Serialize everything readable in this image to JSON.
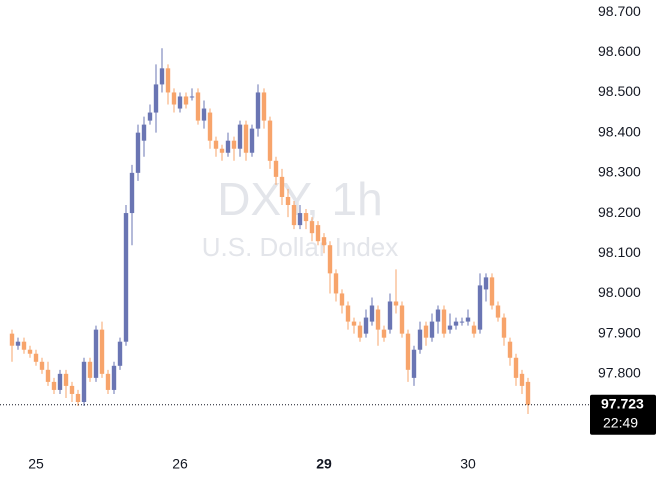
{
  "chart_data": {
    "type": "candlestick",
    "watermark_title": "DXY, 1h",
    "watermark_subtitle": "U.S. Dollar Index",
    "up_color": "#6a75b3",
    "down_color": "#f7a46b",
    "open": [
      97.9,
      97.87,
      97.88,
      97.86,
      97.85,
      97.83,
      97.81,
      97.78,
      97.76,
      97.8,
      97.77,
      97.75,
      97.73,
      97.83,
      97.79,
      97.91,
      97.8,
      97.76,
      97.82,
      97.88,
      98.2,
      98.3,
      98.38,
      98.43,
      98.45,
      98.52,
      98.56,
      98.5,
      98.46,
      98.49,
      98.49,
      98.5,
      98.43,
      98.45,
      98.38,
      98.36,
      98.35,
      98.38,
      98.36,
      98.42,
      98.35,
      98.41,
      98.5,
      98.43,
      98.33,
      98.29,
      98.24,
      98.22,
      98.17,
      98.2,
      98.18,
      98.17,
      98.14,
      98.12,
      98.05,
      98.0,
      97.97,
      97.93,
      97.92,
      97.9,
      97.93,
      97.96,
      97.91,
      97.91,
      97.98,
      97.97,
      97.9,
      97.79,
      97.86,
      97.92,
      97.89,
      97.93,
      97.96,
      97.91,
      97.92,
      97.93,
      97.93,
      97.92,
      97.91,
      98.01,
      98.04,
      97.97,
      97.94,
      97.88,
      97.84,
      97.8,
      97.78
    ],
    "high": [
      97.91,
      97.89,
      97.89,
      97.87,
      97.86,
      97.84,
      97.83,
      97.79,
      97.81,
      97.81,
      97.78,
      97.76,
      97.84,
      97.84,
      97.92,
      97.93,
      97.81,
      97.83,
      97.89,
      98.22,
      98.32,
      98.42,
      98.44,
      98.47,
      98.57,
      98.61,
      98.57,
      98.51,
      98.5,
      98.5,
      98.51,
      98.51,
      98.48,
      98.46,
      98.39,
      98.37,
      98.4,
      98.39,
      98.43,
      98.43,
      98.42,
      98.52,
      98.51,
      98.44,
      98.34,
      98.31,
      98.26,
      98.23,
      98.22,
      98.21,
      98.19,
      98.18,
      98.15,
      98.13,
      98.06,
      98.01,
      97.98,
      97.94,
      97.93,
      97.96,
      97.99,
      97.97,
      97.92,
      98.0,
      98.06,
      97.98,
      97.91,
      97.87,
      97.93,
      97.93,
      97.95,
      97.97,
      97.97,
      97.95,
      97.94,
      97.94,
      97.96,
      97.93,
      98.05,
      98.05,
      98.05,
      97.98,
      97.95,
      97.89,
      97.85,
      97.81,
      97.79
    ],
    "low": [
      97.83,
      97.86,
      97.85,
      97.84,
      97.82,
      97.8,
      97.77,
      97.75,
      97.75,
      97.74,
      97.73,
      97.72,
      97.72,
      97.78,
      97.78,
      97.79,
      97.75,
      97.75,
      97.81,
      97.87,
      98.12,
      98.28,
      98.34,
      98.42,
      98.4,
      98.5,
      98.47,
      98.45,
      98.45,
      98.46,
      98.48,
      98.42,
      98.41,
      98.36,
      98.34,
      98.33,
      98.34,
      98.33,
      98.34,
      98.33,
      98.34,
      98.39,
      98.41,
      98.31,
      98.27,
      98.22,
      98.19,
      98.16,
      98.16,
      98.16,
      98.13,
      98.12,
      98.1,
      98.0,
      97.98,
      97.95,
      97.91,
      97.9,
      97.88,
      97.89,
      97.92,
      97.87,
      97.88,
      97.9,
      97.95,
      97.89,
      97.78,
      97.77,
      97.85,
      97.87,
      97.88,
      97.9,
      97.89,
      97.9,
      97.91,
      97.92,
      97.92,
      97.89,
      97.9,
      97.98,
      97.96,
      97.93,
      97.87,
      97.82,
      97.77,
      97.75,
      97.7
    ],
    "close": [
      97.87,
      97.88,
      97.86,
      97.85,
      97.83,
      97.81,
      97.78,
      97.76,
      97.8,
      97.77,
      97.75,
      97.73,
      97.83,
      97.79,
      97.91,
      97.8,
      97.76,
      97.82,
      97.88,
      98.2,
      98.3,
      98.4,
      98.42,
      98.45,
      98.52,
      98.56,
      98.5,
      98.47,
      98.49,
      98.47,
      98.49,
      98.43,
      98.46,
      98.38,
      98.36,
      98.35,
      98.38,
      98.36,
      98.42,
      98.35,
      98.41,
      98.5,
      98.43,
      98.33,
      98.29,
      98.24,
      98.22,
      98.17,
      98.2,
      98.18,
      98.15,
      98.13,
      98.12,
      98.05,
      98.0,
      97.97,
      97.93,
      97.92,
      97.89,
      97.94,
      97.97,
      97.91,
      97.89,
      97.98,
      97.97,
      97.9,
      97.81,
      97.86,
      97.91,
      97.89,
      97.93,
      97.96,
      97.9,
      97.92,
      97.93,
      97.93,
      97.94,
      97.9,
      98.02,
      98.04,
      97.97,
      97.94,
      97.89,
      97.84,
      97.79,
      97.77,
      97.723
    ],
    "xlim": [
      -2,
      96
    ],
    "ylim": [
      97.623,
      98.73
    ],
    "xticks": [
      {
        "value": 4,
        "label": "25"
      },
      {
        "value": 28,
        "label": "26"
      },
      {
        "value": 52,
        "label": "29"
      },
      {
        "value": 76,
        "label": "30"
      }
    ],
    "xticks_bold": [
      false,
      false,
      true,
      false
    ],
    "yticks": [
      {
        "value": 98.7,
        "label": "98.700"
      },
      {
        "value": 98.6,
        "label": "98.600"
      },
      {
        "value": 98.5,
        "label": "98.500"
      },
      {
        "value": 98.4,
        "label": "98.400"
      },
      {
        "value": 98.3,
        "label": "98.300"
      },
      {
        "value": 98.2,
        "label": "98.200"
      },
      {
        "value": 98.1,
        "label": "98.100"
      },
      {
        "value": 98.0,
        "label": "98.000"
      },
      {
        "value": 97.9,
        "label": "97.900"
      },
      {
        "value": 97.8,
        "label": "97.800"
      }
    ],
    "last_price": 97.723,
    "countdown": "22:49"
  }
}
